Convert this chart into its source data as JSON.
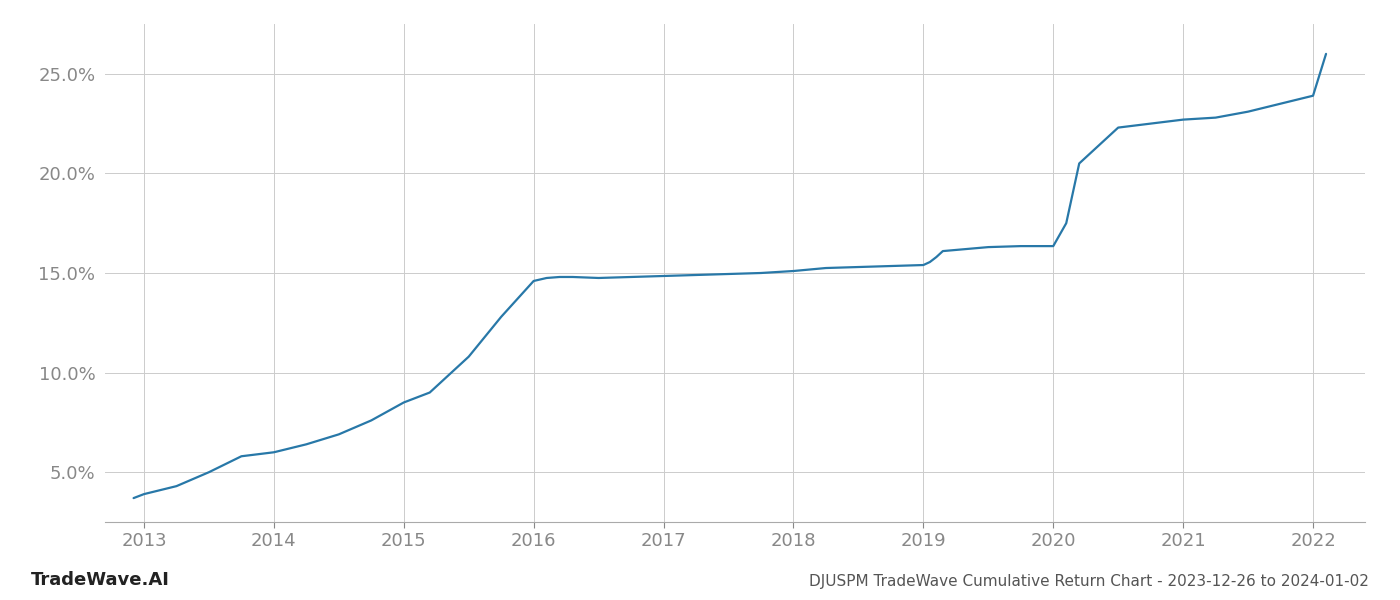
{
  "title": "DJUSPM TradeWave Cumulative Return Chart - 2023-12-26 to 2024-01-02",
  "watermark": "TradeWave.AI",
  "line_color": "#2878a8",
  "background_color": "#ffffff",
  "grid_color": "#cccccc",
  "x_values": [
    2012.92,
    2013.0,
    2013.25,
    2013.5,
    2013.75,
    2014.0,
    2014.25,
    2014.5,
    2014.75,
    2015.0,
    2015.2,
    2015.5,
    2015.75,
    2016.0,
    2016.1,
    2016.2,
    2016.3,
    2016.5,
    2016.75,
    2017.0,
    2017.25,
    2017.5,
    2017.75,
    2018.0,
    2018.25,
    2018.5,
    2018.75,
    2019.0,
    2019.05,
    2019.1,
    2019.15,
    2019.5,
    2019.75,
    2020.0,
    2020.1,
    2020.2,
    2020.5,
    2020.75,
    2021.0,
    2021.25,
    2021.5,
    2021.75,
    2022.0,
    2022.1
  ],
  "y_values": [
    3.7,
    3.9,
    4.3,
    5.0,
    5.8,
    6.0,
    6.4,
    6.9,
    7.6,
    8.5,
    9.0,
    10.8,
    12.8,
    14.6,
    14.75,
    14.8,
    14.8,
    14.75,
    14.8,
    14.85,
    14.9,
    14.95,
    15.0,
    15.1,
    15.25,
    15.3,
    15.35,
    15.4,
    15.55,
    15.8,
    16.1,
    16.3,
    16.35,
    16.35,
    17.5,
    20.5,
    22.3,
    22.5,
    22.7,
    22.8,
    23.1,
    23.5,
    23.9,
    26.0
  ],
  "yticks": [
    5.0,
    10.0,
    15.0,
    20.0,
    25.0
  ],
  "ytick_labels": [
    "5.0%",
    "10.0%",
    "15.0%",
    "20.0%",
    "25.0%"
  ],
  "xticks": [
    2013,
    2014,
    2015,
    2016,
    2017,
    2018,
    2019,
    2020,
    2021,
    2022
  ],
  "xlim": [
    2012.7,
    2022.4
  ],
  "ylim": [
    2.5,
    27.5
  ],
  "line_width": 1.6,
  "title_fontsize": 11,
  "tick_fontsize": 13,
  "watermark_fontsize": 13,
  "title_color": "#555555",
  "tick_color": "#888888",
  "watermark_color": "#222222"
}
